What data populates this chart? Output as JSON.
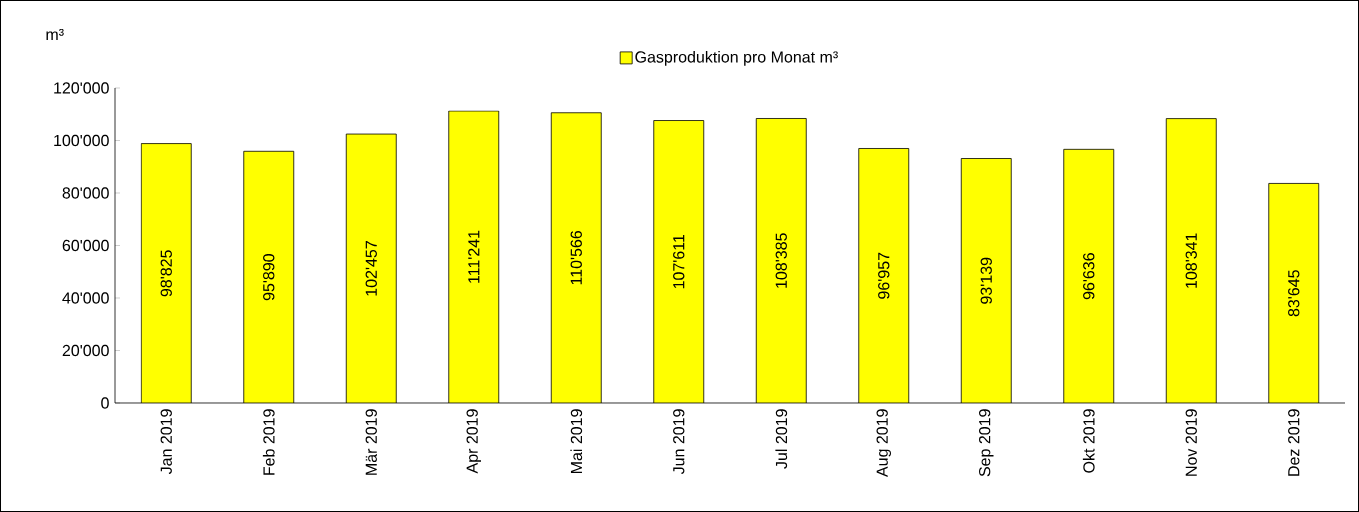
{
  "chart_data": {
    "type": "bar",
    "ylabel": "m³",
    "categories": [
      "Jan 2019",
      "Feb 2019",
      "Mär 2019",
      "Apr 2019",
      "Mai 2019",
      "Jun 2019",
      "Jul 2019",
      "Aug 2019",
      "Sep 2019",
      "Okt 2019",
      "Nov 2019",
      "Dez 2019"
    ],
    "series": [
      {
        "name": "Gasproduktion pro Monat m³",
        "color": "#ffff00",
        "values": [
          98825,
          95890,
          102457,
          111241,
          110566,
          107611,
          108385,
          96957,
          93139,
          96636,
          108341,
          83645
        ],
        "value_labels": [
          "98'825",
          "95'890",
          "102'457",
          "111'241",
          "110'566",
          "107'611",
          "108'385",
          "96'957",
          "93'139",
          "96'636",
          "108'341",
          "83'645"
        ]
      }
    ],
    "ylim": [
      0,
      120000
    ],
    "yticks": [
      0,
      {
        "value": 20000,
        "label": "20'000"
      },
      {
        "value": 40000,
        "label": "40'000"
      },
      {
        "value": 60000,
        "label": "60'000"
      },
      {
        "value": 80000,
        "label": "80'000"
      },
      {
        "value": 100000,
        "label": "100'000"
      },
      {
        "value": 120000,
        "label": "120'000"
      }
    ],
    "legend": "top"
  }
}
